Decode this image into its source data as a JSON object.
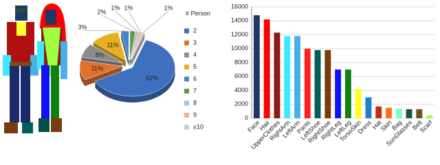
{
  "chart_data": [
    {
      "type": "pie",
      "legend_title": "# Person",
      "categories": [
        "2",
        "3",
        "4",
        "5",
        "6",
        "7",
        "8",
        "9",
        "≥10"
      ],
      "values": [
        62,
        11,
        8,
        11,
        3,
        2,
        1,
        1,
        1
      ],
      "value_labels": [
        "62%",
        "11%",
        "8%",
        "11%",
        "3%",
        "2%",
        "1%",
        "1%",
        "1%"
      ],
      "colors": [
        "#3f6fbf",
        "#e0702a",
        "#8c8c8c",
        "#e8b020",
        "#4a82c6",
        "#5c9a3c",
        "#9dc3e6",
        "#f4b183",
        "#c9c9c9"
      ],
      "legend": "right"
    },
    {
      "type": "bar",
      "categories": [
        "Face",
        "Hair",
        "UpperClothes",
        "RightArm",
        "LeftArm",
        "Pants",
        "LeftShoe",
        "RightShoe",
        "RightLeg",
        "LeftLeg",
        "TorsoSkin",
        "Dress",
        "Hat",
        "Skirt",
        "Bag",
        "SunGlasses",
        "Belt",
        "Scarf"
      ],
      "values": [
        14800,
        14200,
        12300,
        11800,
        11800,
        10000,
        9800,
        9800,
        7000,
        7000,
        4200,
        3000,
        1700,
        1500,
        1400,
        1300,
        1300,
        400
      ],
      "colors": [
        "#1f3864",
        "#ff0000",
        "#8b1a1a",
        "#40e8ff",
        "#4ab0e8",
        "#ff2020",
        "#006058",
        "#7a3a10",
        "#1010ff",
        "#108010",
        "#ffff20",
        "#2080d0",
        "#c03010",
        "#ff7020",
        "#80ffc0",
        "#205040",
        "#705020",
        "#a0ff40"
      ],
      "ylim": [
        0,
        16000
      ],
      "yticks": [
        0,
        2000,
        4000,
        6000,
        8000,
        10000,
        12000,
        14000,
        16000
      ],
      "grid": true
    }
  ]
}
